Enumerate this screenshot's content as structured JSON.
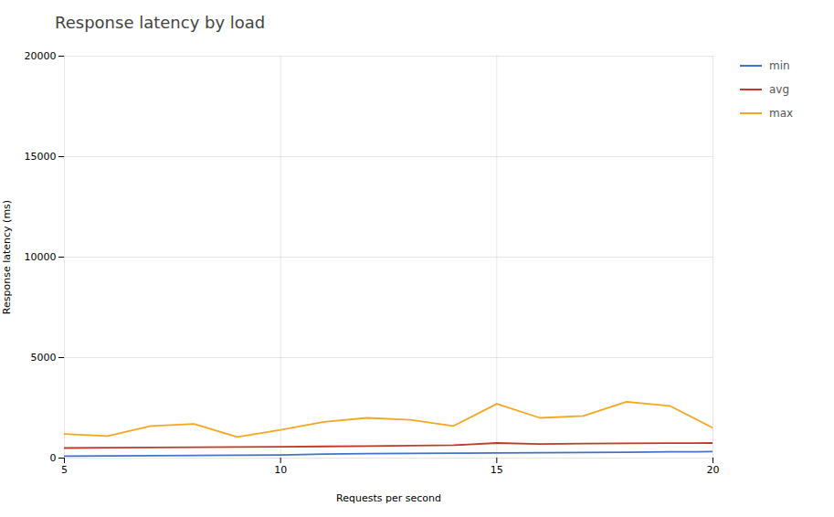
{
  "chart_data": {
    "type": "line",
    "title": "Response latency by load",
    "xlabel": "Requests per second",
    "ylabel": "Response latency (ms)",
    "x": [
      5,
      6,
      7,
      8,
      9,
      10,
      11,
      12,
      13,
      14,
      15,
      16,
      17,
      18,
      19,
      20
    ],
    "series": [
      {
        "name": "min",
        "color": "#4472c4",
        "values": [
          100,
          110,
          120,
          130,
          140,
          150,
          200,
          220,
          230,
          240,
          260,
          270,
          280,
          290,
          310,
          320
        ]
      },
      {
        "name": "avg",
        "color": "#c0392b",
        "values": [
          500,
          520,
          530,
          540,
          550,
          560,
          580,
          600,
          620,
          640,
          750,
          700,
          720,
          730,
          740,
          750
        ]
      },
      {
        "name": "max",
        "color": "#f5a623",
        "values": [
          1200,
          1100,
          1600,
          1700,
          1050,
          1400,
          1800,
          2000,
          1900,
          1600,
          2700,
          2000,
          2100,
          2800,
          2600,
          1500
        ]
      }
    ],
    "xlim": [
      5,
      20
    ],
    "ylim": [
      0,
      20000
    ],
    "xticks": [
      5,
      10,
      15,
      20
    ],
    "yticks": [
      0,
      5000,
      10000,
      15000,
      20000
    ],
    "grid": true,
    "legend": "right"
  }
}
